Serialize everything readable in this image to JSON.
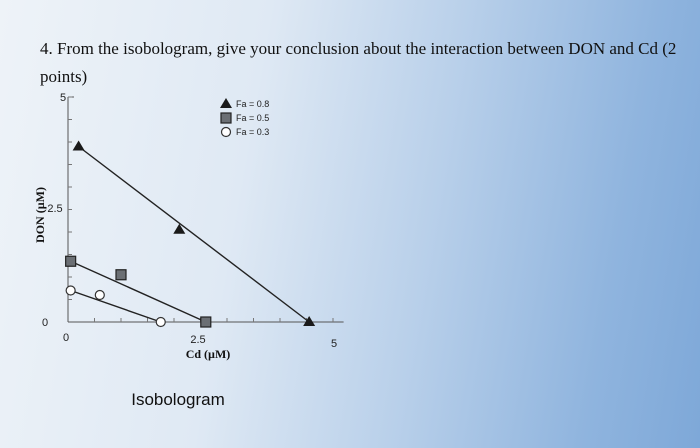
{
  "question": "4. From the isobologram, give your conclusion about the interaction between DON and Cd (2 points)",
  "chart_data": {
    "type": "line",
    "title": "Isobologram",
    "xlabel": "Cd (µM)",
    "ylabel": "DON (µM)",
    "xlim": [
      0,
      5
    ],
    "ylim": [
      0,
      5
    ],
    "x_ticks": [
      "0",
      "2.5",
      "5"
    ],
    "y_ticks": [
      "0",
      "2.5",
      "5"
    ],
    "legend_position": "top-right",
    "series": [
      {
        "name": "Fa = 0.8",
        "marker": "triangle",
        "color": "#1a1a1a",
        "line": [
          [
            0.2,
            3.9
          ],
          [
            4.55,
            0
          ]
        ],
        "points": [
          [
            0.2,
            3.9
          ],
          [
            2.1,
            2.05
          ],
          [
            4.55,
            0
          ]
        ]
      },
      {
        "name": "Fa = 0.5",
        "marker": "square",
        "color": "#6b6f74",
        "line": [
          [
            0.05,
            1.35
          ],
          [
            2.6,
            0
          ]
        ],
        "points": [
          [
            0.05,
            1.35
          ],
          [
            1.0,
            1.05
          ],
          [
            2.6,
            0
          ]
        ]
      },
      {
        "name": "Fa = 0.3",
        "marker": "circle",
        "color": "#ffffff",
        "line": [
          [
            0.05,
            0.7
          ],
          [
            1.75,
            0
          ]
        ],
        "points": [
          [
            0.05,
            0.7
          ],
          [
            0.6,
            0.6
          ],
          [
            1.75,
            0
          ]
        ]
      }
    ]
  }
}
